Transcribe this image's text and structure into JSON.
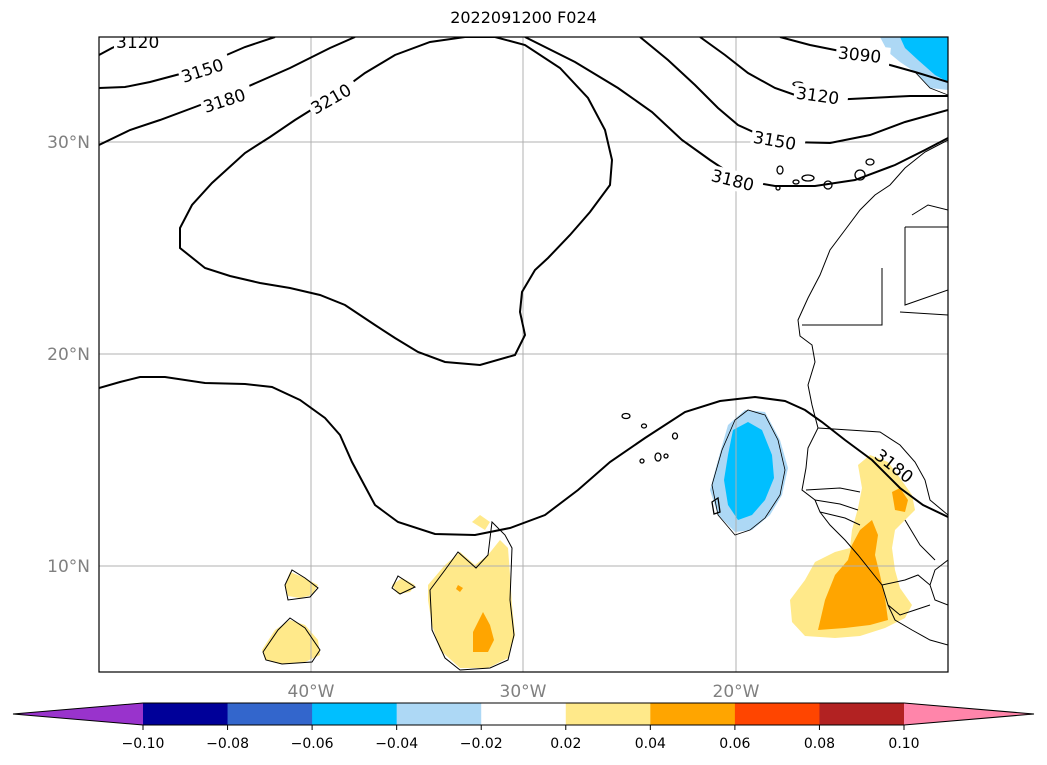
{
  "title": "2022091200 F024",
  "map": {
    "lat_labels": [
      "30°N",
      "20°N",
      "10°N"
    ],
    "lon_labels": [
      "40°W",
      "30°W",
      "20°W"
    ],
    "contour_labels": [
      "3120",
      "3150",
      "3180",
      "3210",
      "3090",
      "3120",
      "3150",
      "3180",
      "3180"
    ]
  },
  "colorbar": {
    "ticks": [
      "−0.10",
      "−0.08",
      "−0.06",
      "−0.04",
      "−0.02",
      "0.02",
      "0.04",
      "0.06",
      "0.08",
      "0.10"
    ],
    "colors": [
      "#9933cc",
      "#000099",
      "#3366cc",
      "#00bfff",
      "#add8f5",
      "#ffffff",
      "#ffe98a",
      "#ffa500",
      "#ff4500",
      "#b22222",
      "#ff85aa"
    ]
  }
}
